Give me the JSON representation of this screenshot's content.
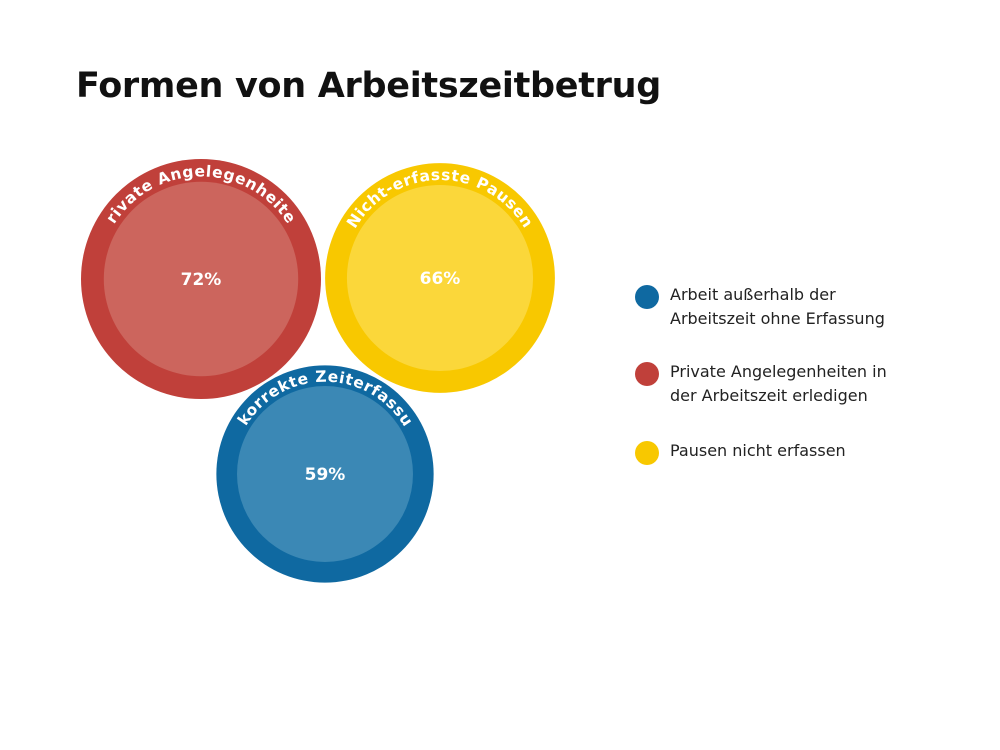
{
  "title": "Formen von Arbeitszeitbetrug",
  "chart_data": {
    "type": "bubble",
    "title": "Formen von Arbeitszeitbetrug",
    "series": [
      {
        "label": "Private Angelegenheiten",
        "value": 72,
        "display": "72%",
        "color": "#c0403a",
        "inner_color": "#cc655d"
      },
      {
        "label": "Nicht-erfasste Pausen",
        "value": 66,
        "display": "66%",
        "color": "#f8c800",
        "inner_color": "#fbd73a"
      },
      {
        "label": "Unkorrekte Zeiterfassung",
        "value": 59,
        "display": "59%",
        "color": "#0f69a1",
        "inner_color": "#3b88b5"
      }
    ],
    "legend": {
      "placement": "right",
      "items": [
        {
          "text": "Arbeit außerhalb der Arbeitszeit ohne Erfassung",
          "lines": [
            "Arbeit außerhalb der",
            "Arbeitszeit ohne Erfassung"
          ],
          "color": "#0f69a1"
        },
        {
          "text": "Private Angelegenheiten in der Arbeitszeit erledigen",
          "lines": [
            "Private Angelegenheiten in",
            "der Arbeitszeit erledigen"
          ],
          "color": "#c0403a"
        },
        {
          "text": "Pausen nicht erfassen",
          "lines": [
            "Pausen nicht erfassen"
          ],
          "color": "#f8c800"
        }
      ]
    }
  }
}
